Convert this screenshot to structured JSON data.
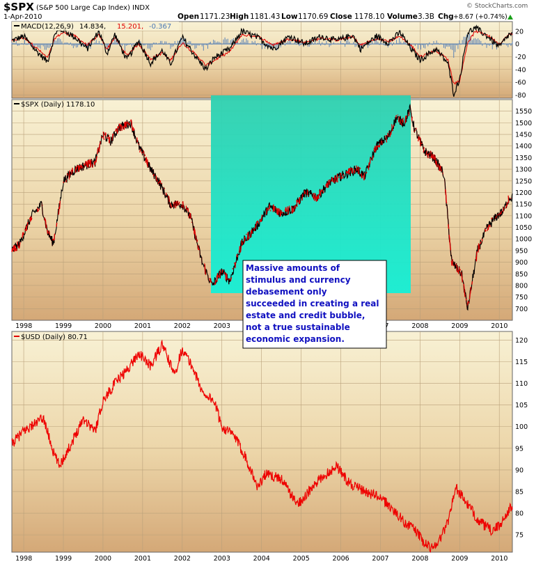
{
  "header": {
    "symbol": "$SPX",
    "name": "(S&P 500 Large Cap Index)",
    "exchange": "INDX",
    "date": "1-Apr-2010",
    "open_label": "Open",
    "open": "1171.23",
    "high_label": "High",
    "high": "1181.43",
    "low_label": "Low",
    "low": "1170.69",
    "close_label": "Close",
    "close": "1178.10",
    "volume_label": "Volume",
    "volume": "3.3B",
    "chg_label": "Chg",
    "chg": "+8.67 (+0.74%)",
    "watermark": "© StockCharts.com"
  },
  "annotation": {
    "lines": [
      "Massive amounts of",
      "stimulus and currency",
      "debasement only",
      "succeeded in creating a real",
      "estate and credit bubble,",
      "not a true sustainable",
      "economic expansion."
    ]
  },
  "colors": {
    "panel_bg_top": "#f7efcf",
    "panel_bg_bottom": "#d6ad7c",
    "price_line": "#000000",
    "price_down": "#e00000",
    "usd_line": "#ee0000",
    "macd_line": "#000000",
    "macd_signal": "#e00000",
    "macd_hist": "#4a78b5",
    "highlight": "#20e8c8",
    "annotation_text": "#1010c0"
  },
  "chart_data": [
    {
      "type": "line",
      "panel": "macd",
      "legend": {
        "label": "MACD(12,26,9)",
        "macd": "14.834,",
        "signal": "15.201,",
        "hist": "-0.367"
      },
      "ylim": [
        -85,
        35
      ],
      "yticks": [
        20,
        0,
        -20,
        -40,
        -60,
        -80
      ],
      "grid": true,
      "x": [
        1997.7,
        1998.0,
        1998.3,
        1998.6,
        1998.8,
        1999.0,
        1999.3,
        1999.6,
        1999.9,
        2000.1,
        2000.3,
        2000.6,
        2000.9,
        2001.2,
        2001.5,
        2001.7,
        2002.0,
        2002.4,
        2002.6,
        2002.8,
        2003.2,
        2003.5,
        2003.9,
        2004.3,
        2004.7,
        2005.1,
        2005.5,
        2005.9,
        2006.3,
        2006.5,
        2006.9,
        2007.2,
        2007.5,
        2007.8,
        2008.0,
        2008.4,
        2008.7,
        2008.85,
        2009.0,
        2009.2,
        2009.4,
        2009.7,
        2010.0,
        2010.25
      ],
      "series": [
        {
          "name": "MACD",
          "values": [
            5,
            12,
            -10,
            -28,
            18,
            22,
            10,
            -8,
            20,
            -15,
            15,
            -25,
            5,
            -30,
            -10,
            -32,
            10,
            -25,
            -40,
            -22,
            -8,
            20,
            10,
            -8,
            12,
            0,
            12,
            5,
            14,
            -8,
            12,
            2,
            18,
            -10,
            -25,
            -8,
            -30,
            -78,
            -55,
            18,
            25,
            12,
            -5,
            15
          ]
        },
        {
          "name": "Signal",
          "values": [
            5,
            10,
            -5,
            -22,
            10,
            18,
            12,
            -2,
            14,
            -8,
            10,
            -18,
            0,
            -24,
            -14,
            -26,
            2,
            -20,
            -34,
            -26,
            -12,
            14,
            12,
            -2,
            8,
            2,
            9,
            6,
            11,
            -2,
            8,
            4,
            12,
            -4,
            -20,
            -10,
            -24,
            -62,
            -58,
            2,
            20,
            14,
            0,
            15
          ]
        }
      ]
    },
    {
      "type": "line",
      "panel": "spx",
      "legend": {
        "label": "$SPX (Daily) 1178.10"
      },
      "ylim": [
        650,
        1600
      ],
      "yticks": [
        1550,
        1500,
        1450,
        1400,
        1350,
        1300,
        1250,
        1200,
        1150,
        1100,
        1050,
        1000,
        950,
        900,
        850,
        800,
        750,
        700
      ],
      "xticks": [
        "1998",
        "1999",
        "2000",
        "2001",
        "2002",
        "2003",
        "2004",
        "2005",
        "2006",
        "2007",
        "2008",
        "2009",
        "2010"
      ],
      "grid": true,
      "x": [
        1997.7,
        1997.9,
        1998.2,
        1998.45,
        1998.6,
        1998.75,
        1999.0,
        1999.3,
        1999.6,
        1999.8,
        2000.0,
        2000.2,
        2000.4,
        2000.7,
        2000.9,
        2001.2,
        2001.4,
        2001.7,
        2002.0,
        2002.2,
        2002.5,
        2002.75,
        2003.0,
        2003.2,
        2003.5,
        2003.9,
        2004.2,
        2004.5,
        2004.8,
        2005.1,
        2005.4,
        2005.7,
        2006.0,
        2006.4,
        2006.6,
        2006.9,
        2007.2,
        2007.4,
        2007.6,
        2007.75,
        2007.85,
        2008.1,
        2008.35,
        2008.6,
        2008.8,
        2009.05,
        2009.2,
        2009.45,
        2009.7,
        2009.95,
        2010.1,
        2010.25
      ],
      "values": [
        950,
        980,
        1100,
        1150,
        1030,
        980,
        1250,
        1300,
        1320,
        1330,
        1450,
        1420,
        1480,
        1500,
        1400,
        1300,
        1250,
        1150,
        1150,
        1100,
        900,
        800,
        860,
        820,
        980,
        1060,
        1140,
        1110,
        1130,
        1200,
        1180,
        1240,
        1270,
        1300,
        1270,
        1400,
        1440,
        1520,
        1500,
        1560,
        1480,
        1380,
        1350,
        1280,
        900,
        850,
        700,
        950,
        1050,
        1100,
        1120,
        1178
      ]
    },
    {
      "type": "line",
      "panel": "usd",
      "legend": {
        "label": "$USD (Daily) 80.71"
      },
      "ylim": [
        71,
        122
      ],
      "yticks": [
        120,
        115,
        110,
        105,
        100,
        95,
        90,
        85,
        80,
        75
      ],
      "xticks": [
        "1998",
        "1999",
        "2000",
        "2001",
        "2002",
        "2003",
        "2004",
        "2005",
        "2006",
        "2007",
        "2008",
        "2009",
        "2010"
      ],
      "grid": true,
      "x": [
        1997.7,
        1998.0,
        1998.5,
        1998.75,
        1998.9,
        1999.2,
        1999.5,
        1999.8,
        2000.0,
        2000.3,
        2000.6,
        2000.9,
        2001.2,
        2001.5,
        2001.8,
        2002.0,
        2002.3,
        2002.5,
        2002.8,
        2003.0,
        2003.3,
        2003.6,
        2003.9,
        2004.1,
        2004.5,
        2004.9,
        2005.1,
        2005.5,
        2005.9,
        2006.2,
        2006.6,
        2006.9,
        2007.2,
        2007.6,
        2007.9,
        2008.1,
        2008.3,
        2008.5,
        2008.7,
        2008.9,
        2009.2,
        2009.5,
        2009.8,
        2010.0,
        2010.25
      ],
      "values": [
        96,
        99,
        102,
        94,
        91,
        96,
        102,
        99,
        106,
        110,
        113,
        117,
        114,
        119,
        112,
        118,
        113,
        108,
        106,
        100,
        98,
        93,
        86,
        89,
        88,
        82,
        84,
        88,
        91,
        87,
        85,
        84,
        82,
        78,
        76,
        73,
        72,
        74,
        78,
        86,
        82,
        78,
        76,
        77,
        81
      ]
    }
  ]
}
